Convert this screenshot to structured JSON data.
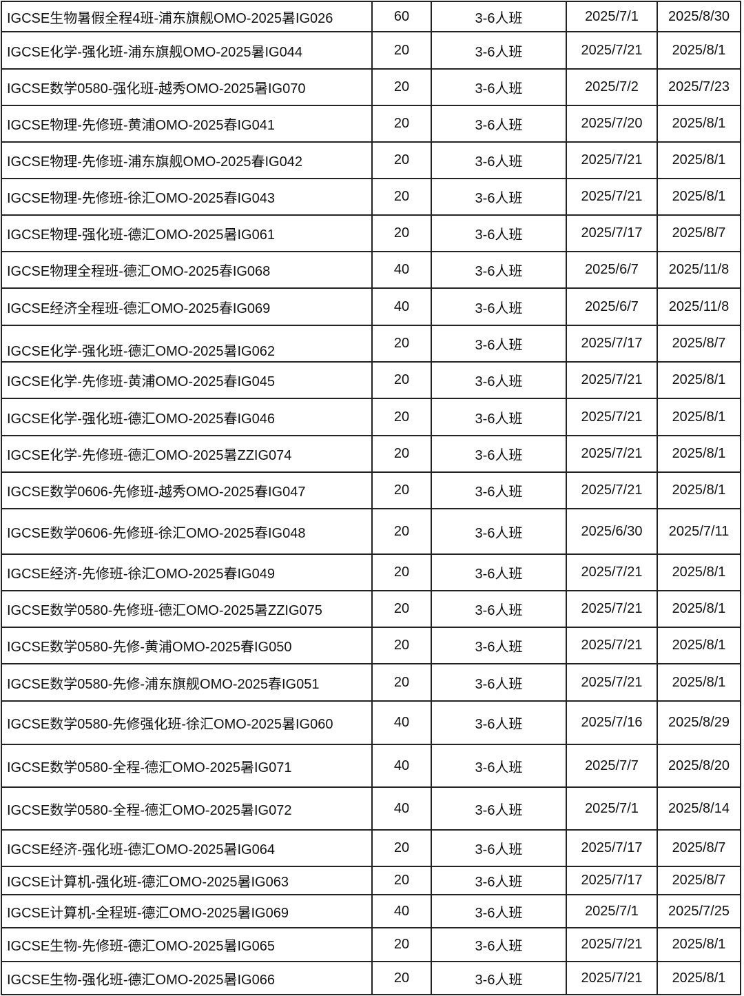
{
  "rows": [
    [
      "IGCSE生物暑假全程4班-浦东旗舰OMO-2025暑IG026",
      "60",
      "3-6人班",
      "2025/7/1",
      "2025/8/30"
    ],
    [
      "IGCSE化学-强化班-浦东旗舰OMO-2025暑IG044",
      "20",
      "3-6人班",
      "2025/7/21",
      "2025/8/1"
    ],
    [
      "IGCSE数学0580-强化班-越秀OMO-2025暑IG070",
      "20",
      "3-6人班",
      "2025/7/2",
      "2025/7/23"
    ],
    [
      "IGCSE物理-先修班-黄浦OMO-2025春IG041",
      "20",
      "3-6人班",
      "2025/7/20",
      "2025/8/1"
    ],
    [
      "IGCSE物理-先修班-浦东旗舰OMO-2025春IG042",
      "20",
      "3-6人班",
      "2025/7/21",
      "2025/8/1"
    ],
    [
      "IGCSE物理-先修班-徐汇OMO-2025春IG043",
      "20",
      "3-6人班",
      "2025/7/21",
      "2025/8/1"
    ],
    [
      "IGCSE物理-强化班-德汇OMO-2025暑IG061",
      "20",
      "3-6人班",
      "2025/7/17",
      "2025/8/7"
    ],
    [
      "IGCSE物理全程班-德汇OMO-2025春IG068",
      "40",
      "3-6人班",
      "2025/6/7",
      "2025/11/8"
    ],
    [
      "IGCSE经济全程班-德汇OMO-2025春IG069",
      "40",
      "3-6人班",
      "2025/6/7",
      "2025/11/8"
    ],
    [
      "IGCSE化学-强化班-德汇OMO-2025暑IG062",
      "20",
      "3-6人班",
      "2025/7/17",
      "2025/8/7"
    ],
    [
      "IGCSE化学-先修班-黄浦OMO-2025春IG045",
      "20",
      "3-6人班",
      "2025/7/21",
      "2025/8/1"
    ],
    [
      "IGCSE化学-强化班-德汇OMO-2025春IG046",
      "20",
      "3-6人班",
      "2025/7/21",
      "2025/8/1"
    ],
    [
      "IGCSE化学-先修班-德汇OMO-2025暑ZZIG074",
      "20",
      "3-6人班",
      "2025/7/21",
      "2025/8/1"
    ],
    [
      "IGCSE数学0606-先修班-越秀OMO-2025春IG047",
      "20",
      "3-6人班",
      "2025/7/21",
      "2025/8/1"
    ],
    [
      "IGCSE数学0606-先修班-徐汇OMO-2025春IG048",
      "20",
      "3-6人班",
      "2025/6/30",
      "2025/7/11"
    ],
    [
      "IGCSE经济-先修班-徐汇OMO-2025春IG049",
      "20",
      "3-6人班",
      "2025/7/21",
      "2025/8/1"
    ],
    [
      "IGCSE数学0580-先修班-德汇OMO-2025暑ZZIG075",
      "20",
      "3-6人班",
      "2025/7/21",
      "2025/8/1"
    ],
    [
      "IGCSE数学0580-先修-黄浦OMO-2025春IG050",
      "20",
      "3-6人班",
      "2025/7/21",
      "2025/8/1"
    ],
    [
      "IGCSE数学0580-先修-浦东旗舰OMO-2025春IG051",
      "20",
      "3-6人班",
      "2025/7/21",
      "2025/8/1"
    ],
    [
      "IGCSE数学0580-先修强化班-徐汇OMO-2025暑IG060",
      "40",
      "3-6人班",
      "2025/7/16",
      "2025/8/29"
    ],
    [
      "IGCSE数学0580-全程-德汇OMO-2025暑IG071",
      "40",
      "3-6人班",
      "2025/7/7",
      "2025/8/20"
    ],
    [
      "IGCSE数学0580-全程-德汇OMO-2025暑IG072",
      "40",
      "3-6人班",
      "2025/7/1",
      "2025/8/14"
    ],
    [
      "IGCSE经济-强化班-德汇OMO-2025暑IG064",
      "20",
      "3-6人班",
      "2025/7/17",
      "2025/8/7"
    ],
    [
      "IGCSE计算机-强化班-德汇OMO-2025暑IG063",
      "20",
      "3-6人班",
      "2025/7/17",
      "2025/8/7"
    ],
    [
      "IGCSE计算机-全程班-德汇OMO-2025暑IG069",
      "40",
      "3-6人班",
      "2025/7/1",
      "2025/7/25"
    ],
    [
      "IGCSE生物-先修班-德汇OMO-2025暑IG065",
      "20",
      "3-6人班",
      "2025/7/21",
      "2025/8/1"
    ],
    [
      "IGCSE生物-强化班-德汇OMO-2025暑IG066",
      "20",
      "3-6人班",
      "2025/7/21",
      "2025/8/1"
    ]
  ]
}
